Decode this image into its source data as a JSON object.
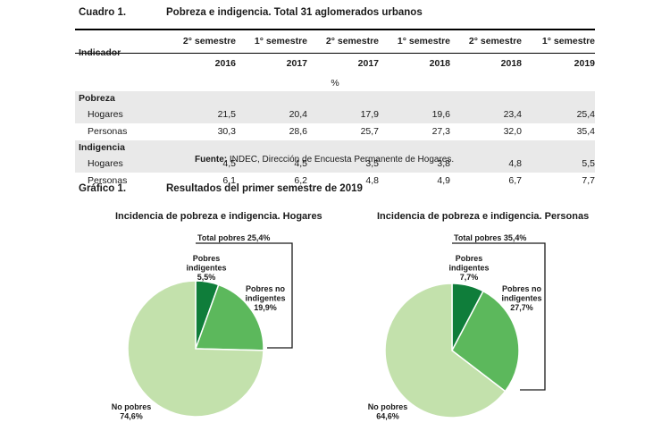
{
  "cuadro": {
    "label": "Cuadro 1.",
    "title": "Pobreza e indigencia. Total 31 aglomerados urbanos",
    "indicator_header": "Indicador",
    "periods": [
      "2° semestre 2016",
      "1° semestre 2017",
      "2° semestre 2017",
      "1° semestre 2018",
      "2° semestre 2018",
      "1° semestre 2019"
    ],
    "unit": "%",
    "sections": [
      {
        "name": "Pobreza",
        "rows": [
          {
            "label": "Hogares",
            "values": [
              "21,5",
              "20,4",
              "17,9",
              "19,6",
              "23,4",
              "25,4"
            ]
          },
          {
            "label": "Personas",
            "values": [
              "30,3",
              "28,6",
              "25,7",
              "27,3",
              "32,0",
              "35,4"
            ]
          }
        ]
      },
      {
        "name": "Indigencia",
        "rows": [
          {
            "label": "Hogares",
            "values": [
              "4,5",
              "4,5",
              "3,5",
              "3,8",
              "4,8",
              "5,5"
            ]
          },
          {
            "label": "Personas",
            "values": [
              "6,1",
              "6,2",
              "4,8",
              "4,9",
              "6,7",
              "7,7"
            ]
          }
        ]
      }
    ],
    "source_bold": "Fuente:",
    "source_text": " INDEC, Dirección de Encuesta Permanente de Hogares."
  },
  "grafico": {
    "label": "Gráfico 1.",
    "title": "Resultados del primer semestre de 2019"
  },
  "colors": {
    "indigentes": "#0f7d3a",
    "no_indigentes": "#5cb85c",
    "no_pobres": "#c3e1ac"
  },
  "chart_data": [
    {
      "type": "pie",
      "title": "Incidencia de pobreza e indigencia. Hogares",
      "bracket_label": "Total pobres 25,4%",
      "slices": [
        {
          "label": [
            "Pobres",
            "indigentes",
            "5,5%"
          ],
          "value": 5.5,
          "color_key": "indigentes"
        },
        {
          "label": [
            "Pobres no",
            "indigentes",
            "19,9%"
          ],
          "value": 19.9,
          "color_key": "no_indigentes"
        },
        {
          "label": [
            "No pobres",
            "74,6%"
          ],
          "value": 74.6,
          "color_key": "no_pobres"
        }
      ]
    },
    {
      "type": "pie",
      "title": "Incidencia de pobreza e indigencia. Personas",
      "bracket_label": "Total pobres 35,4%",
      "slices": [
        {
          "label": [
            "Pobres",
            "indigentes",
            "7,7%"
          ],
          "value": 7.7,
          "color_key": "indigentes"
        },
        {
          "label": [
            "Pobres no",
            "indigentes",
            "27,7%"
          ],
          "value": 27.7,
          "color_key": "no_indigentes"
        },
        {
          "label": [
            "No pobres",
            "64,6%"
          ],
          "value": 64.6,
          "color_key": "no_pobres"
        }
      ]
    }
  ]
}
